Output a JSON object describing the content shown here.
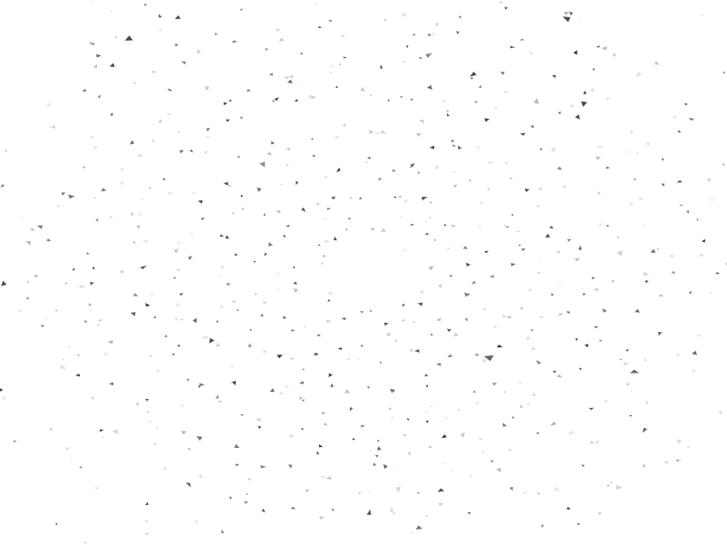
{
  "scene": {
    "subject": "confetti-burst",
    "background_color": "#ffffff",
    "particle_colors": [
      "#2f3640",
      "#4a5568",
      "#6b7280",
      "#9aa0a8",
      "#c4c8cf",
      "#3d4a63"
    ],
    "burst_shape": "radial-rings",
    "particle_shape": "triangle-shard"
  }
}
